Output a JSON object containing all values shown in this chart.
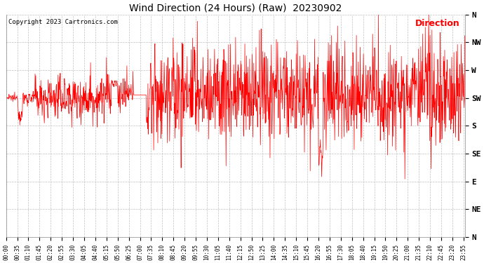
{
  "title": "Wind Direction (24 Hours) (Raw)  20230902",
  "copyright": "Copyright 2023 Cartronics.com",
  "legend_label": "Direction",
  "legend_color": "#ff0000",
  "line_color": "#ff0000",
  "background_color": "#ffffff",
  "grid_color": "#c0c0c0",
  "ytick_labels": [
    "N",
    "NW",
    "W",
    "SW",
    "S",
    "SE",
    "E",
    "NE",
    "N"
  ],
  "ytick_values": [
    360,
    315,
    270,
    225,
    180,
    135,
    90,
    45,
    0
  ],
  "ylim": [
    0,
    360
  ],
  "tick_interval_minutes": 35
}
